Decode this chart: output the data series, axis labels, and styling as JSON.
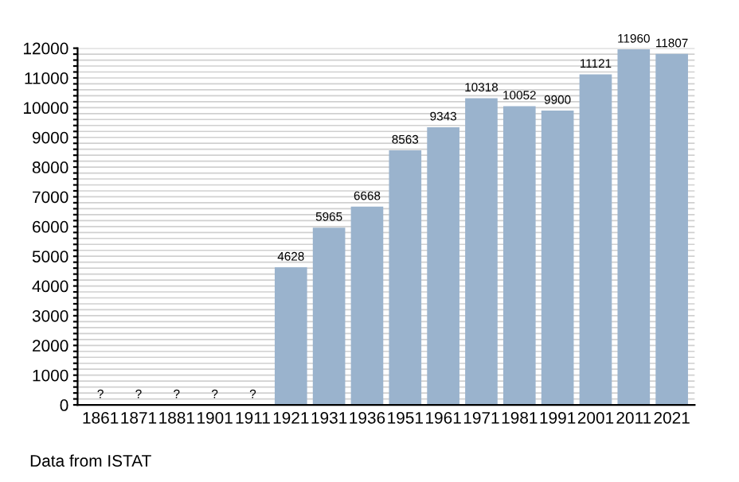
{
  "chart_data": {
    "type": "bar",
    "categories": [
      "1861",
      "1871",
      "1881",
      "1901",
      "1911",
      "1921",
      "1931",
      "1936",
      "1951",
      "1961",
      "1971",
      "1981",
      "1991",
      "2001",
      "2011",
      "2021"
    ],
    "values": [
      null,
      null,
      null,
      null,
      null,
      4628,
      5965,
      6668,
      8563,
      9343,
      10318,
      10052,
      9900,
      11121,
      11960,
      11807
    ],
    "value_labels": [
      "?",
      "?",
      "?",
      "?",
      "?",
      "4628",
      "5965",
      "6668",
      "8563",
      "9343",
      "10318",
      "10052",
      "9900",
      "11121",
      "11960",
      "11807"
    ],
    "color": "#9ab3cd",
    "ylim": [
      0,
      12000
    ],
    "yticks": [
      0,
      {
        "value": 200,
        "label": null
      },
      {
        "value": 400,
        "label": null
      },
      {
        "value": 600,
        "label": null
      },
      {
        "value": 800,
        "label": null
      },
      1000,
      {
        "value": 1200,
        "label": null
      },
      {
        "value": 1400,
        "label": null
      },
      {
        "value": 1600,
        "label": null
      },
      {
        "value": 1800,
        "label": null
      },
      2000,
      {
        "value": 2200,
        "label": null
      },
      {
        "value": 2400,
        "label": null
      },
      {
        "value": 2600,
        "label": null
      },
      {
        "value": 2800,
        "label": null
      },
      3000,
      {
        "value": 3200,
        "label": null
      },
      {
        "value": 3400,
        "label": null
      },
      {
        "value": 3600,
        "label": null
      },
      {
        "value": 3800,
        "label": null
      },
      4000,
      {
        "value": 4200,
        "label": null
      },
      {
        "value": 4400,
        "label": null
      },
      {
        "value": 4600,
        "label": null
      },
      {
        "value": 4800,
        "label": null
      },
      5000,
      {
        "value": 5200,
        "label": null
      },
      {
        "value": 5400,
        "label": null
      },
      {
        "value": 5600,
        "label": null
      },
      {
        "value": 5800,
        "label": null
      },
      6000,
      {
        "value": 6200,
        "label": null
      },
      {
        "value": 6400,
        "label": null
      },
      {
        "value": 6600,
        "label": null
      },
      {
        "value": 6800,
        "label": null
      },
      7000,
      {
        "value": 7200,
        "label": null
      },
      {
        "value": 7400,
        "label": null
      },
      {
        "value": 7600,
        "label": null
      },
      {
        "value": 7800,
        "label": null
      },
      8000,
      {
        "value": 8200,
        "label": null
      },
      {
        "value": 8400,
        "label": null
      },
      {
        "value": 8600,
        "label": null
      },
      {
        "value": 8800,
        "label": null
      },
      9000,
      {
        "value": 9200,
        "label": null
      },
      {
        "value": 9400,
        "label": null
      },
      {
        "value": 9600,
        "label": null
      },
      {
        "value": 9800,
        "label": null
      },
      10000,
      {
        "value": 10200,
        "label": null
      },
      {
        "value": 10400,
        "label": null
      },
      {
        "value": 10600,
        "label": null
      },
      {
        "value": 10800,
        "label": null
      },
      11000,
      {
        "value": 11200,
        "label": null
      },
      {
        "value": 11400,
        "label": null
      },
      {
        "value": 11600,
        "label": null
      },
      {
        "value": 11800,
        "label": null
      },
      12000
    ],
    "grid": "y",
    "annotations": [
      "Data from ISTAT"
    ]
  }
}
